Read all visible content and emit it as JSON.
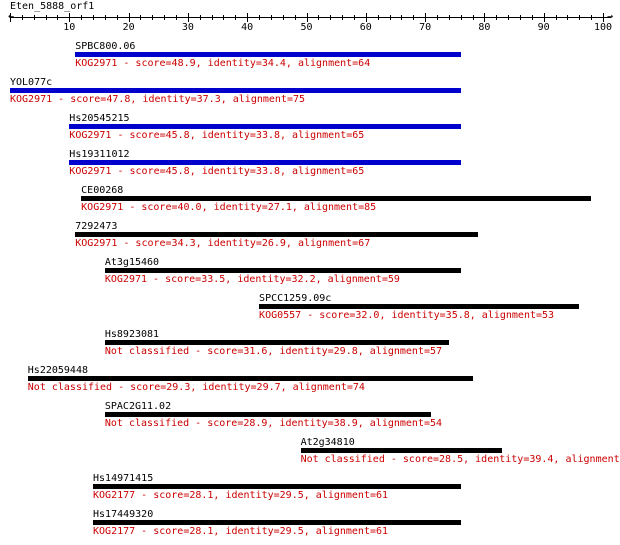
{
  "query_name": "Eten_5888_orf1",
  "scale": {
    "min": 0,
    "max": 100,
    "labels": [
      "10",
      "20",
      "30",
      "40",
      "50",
      "60",
      "70",
      "80",
      "90",
      "100"
    ]
  },
  "colors": {
    "kog2971": "#0000cc",
    "other": "#000000",
    "desc_text": "#cc0000"
  },
  "hits": [
    {
      "name": "SPBC800.06",
      "desc": "KOG2971 - score=48.9, identity=34.4, alignment=64",
      "start": 11,
      "end": 76,
      "bar_color": "#0000cc"
    },
    {
      "name": "YOL077c",
      "desc": "KOG2971 - score=47.8, identity=37.3, alignment=75",
      "start": 0,
      "end": 76,
      "bar_color": "#0000cc"
    },
    {
      "name": "Hs20545215",
      "desc": "KOG2971 - score=45.8, identity=33.8, alignment=65",
      "start": 10,
      "end": 76,
      "bar_color": "#0000cc"
    },
    {
      "name": "Hs19311012",
      "desc": "KOG2971 - score=45.8, identity=33.8, alignment=65",
      "start": 10,
      "end": 76,
      "bar_color": "#0000cc"
    },
    {
      "name": "CE00268",
      "desc": "KOG2971 - score=40.0, identity=27.1, alignment=85",
      "start": 12,
      "end": 98,
      "bar_color": "#000000"
    },
    {
      "name": "7292473",
      "desc": "KOG2971 - score=34.3, identity=26.9, alignment=67",
      "start": 11,
      "end": 79,
      "bar_color": "#000000"
    },
    {
      "name": "At3g15460",
      "desc": "KOG2971 - score=33.5, identity=32.2, alignment=59",
      "start": 16,
      "end": 76,
      "bar_color": "#000000"
    },
    {
      "name": "SPCC1259.09c",
      "desc": "KOG0557 - score=32.0, identity=35.8, alignment=53",
      "start": 42,
      "end": 96,
      "bar_color": "#000000"
    },
    {
      "name": "Hs8923081",
      "desc": "Not classified - score=31.6, identity=29.8, alignment=57",
      "start": 16,
      "end": 74,
      "bar_color": "#000000"
    },
    {
      "name": "Hs22059448",
      "desc": "Not classified - score=29.3, identity=29.7, alignment=74",
      "start": 3,
      "end": 78,
      "bar_color": "#000000"
    },
    {
      "name": "SPAC2G11.02",
      "desc": "Not classified - score=28.9, identity=38.9, alignment=54",
      "start": 16,
      "end": 71,
      "bar_color": "#000000"
    },
    {
      "name": "At2g34810",
      "desc": "Not classified - score=28.5, identity=39.4, alignment=66",
      "start": 49,
      "end": 83,
      "bar_color": "#000000"
    },
    {
      "name": "Hs14971415",
      "desc": "KOG2177 - score=28.1, identity=29.5, alignment=61",
      "start": 14,
      "end": 76,
      "bar_color": "#000000"
    },
    {
      "name": "Hs17449320",
      "desc": "KOG2177 - score=28.1, identity=29.5, alignment=61",
      "start": 14,
      "end": 76,
      "bar_color": "#000000"
    }
  ]
}
